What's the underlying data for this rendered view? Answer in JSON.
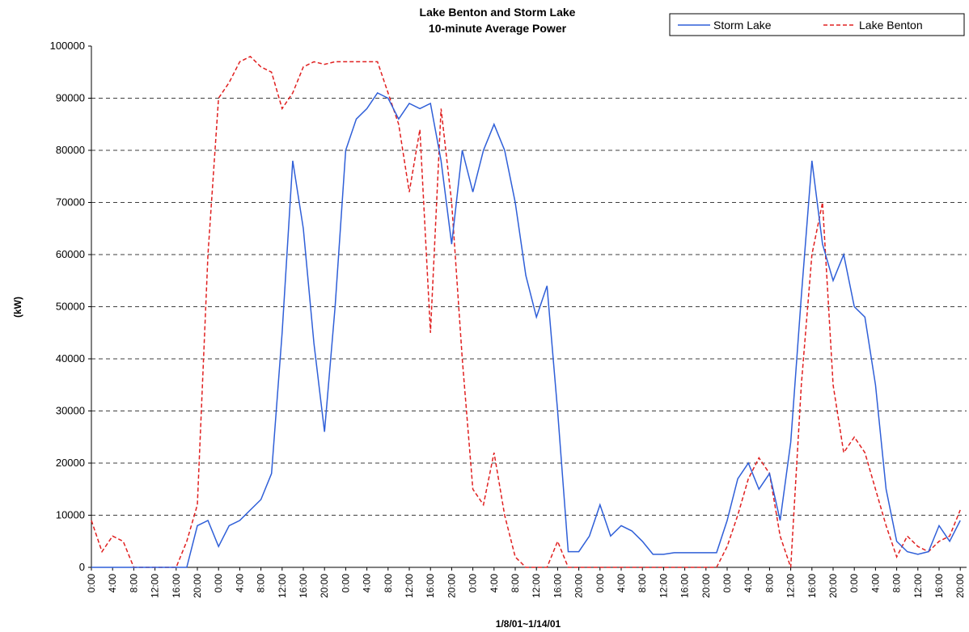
{
  "chart_data": {
    "type": "line",
    "title": "Lake Benton and Storm Lake",
    "subtitle": "10-minute Average Power",
    "y_label": "(kW)",
    "x_label": "1/8/01~1/14/01",
    "categories": [
      "0:00",
      null,
      "4:00",
      null,
      "8:00",
      null,
      "12:00",
      null,
      "16:00",
      null,
      "20:00",
      null,
      "0:00",
      null,
      "4:00",
      null,
      "8:00",
      null,
      "12:00",
      null,
      "16:00",
      null,
      "20:00",
      null,
      "0:00",
      null,
      "4:00",
      null,
      "8:00",
      null,
      "12:00",
      null,
      "16:00",
      null,
      "20:00",
      null,
      "0:00",
      null,
      "4:00",
      null,
      "8:00",
      null,
      "12:00",
      null,
      "16:00",
      null,
      "20:00",
      null,
      "0:00",
      null,
      "4:00",
      null,
      "8:00",
      null,
      "12:00",
      null,
      "16:00",
      null,
      "20:00",
      null,
      "0:00",
      null,
      "4:00",
      null,
      "8:00",
      null,
      "12:00",
      null,
      "16:00",
      null,
      "20:00",
      null,
      "0:00",
      null,
      "4:00",
      null,
      "8:00",
      null,
      "12:00",
      null,
      "16:00",
      null,
      "20:00"
    ],
    "series": [
      {
        "name": "Storm Lake",
        "color": "#2f5fd8",
        "dash": false,
        "values": [
          0,
          0,
          0,
          0,
          0,
          0,
          0,
          0,
          0,
          0,
          8000,
          9000,
          4000,
          8000,
          9000,
          11000,
          13000,
          18000,
          45000,
          78000,
          65000,
          43000,
          26000,
          50000,
          80000,
          86000,
          88000,
          91000,
          90000,
          86000,
          89000,
          88000,
          89000,
          78000,
          62000,
          80000,
          72000,
          80000,
          85000,
          80000,
          70000,
          56000,
          48000,
          54000,
          30000,
          3000,
          3000,
          6000,
          12000,
          6000,
          8000,
          7000,
          5000,
          2500,
          2500,
          2800,
          2800,
          2800,
          2800,
          2800,
          9000,
          17000,
          20000,
          15000,
          18000,
          9000,
          24000,
          52000,
          78000,
          62000,
          55000,
          60000,
          50000,
          48000,
          35000,
          15000,
          5000,
          3000,
          2500,
          3000,
          8000,
          5000,
          9000
        ]
      },
      {
        "name": "Lake Benton",
        "color": "#e02020",
        "dash": true,
        "values": [
          9000,
          3000,
          6000,
          5000,
          0,
          0,
          0,
          0,
          0,
          5000,
          12000,
          60000,
          90000,
          93000,
          97000,
          98000,
          96000,
          95000,
          88000,
          91000,
          96000,
          97000,
          96500,
          97000,
          97000,
          97000,
          97000,
          97000,
          91000,
          85000,
          72000,
          84000,
          45000,
          88000,
          70000,
          40000,
          15000,
          12000,
          22000,
          10000,
          2000,
          0,
          0,
          0,
          5000,
          0,
          0,
          0,
          0,
          0,
          0,
          0,
          0,
          0,
          0,
          0,
          0,
          0,
          0,
          0,
          4000,
          10000,
          17000,
          21000,
          18000,
          6000,
          0,
          35000,
          60000,
          70000,
          35000,
          22000,
          25000,
          22000,
          15000,
          8000,
          2000,
          6000,
          4000,
          3000,
          5000,
          6000,
          11000
        ]
      }
    ],
    "ylim": [
      0,
      100000
    ],
    "yticks": [
      0,
      10000,
      20000,
      30000,
      40000,
      50000,
      60000,
      70000,
      80000,
      90000,
      100000
    ],
    "grid": true,
    "legend": "top-right"
  }
}
